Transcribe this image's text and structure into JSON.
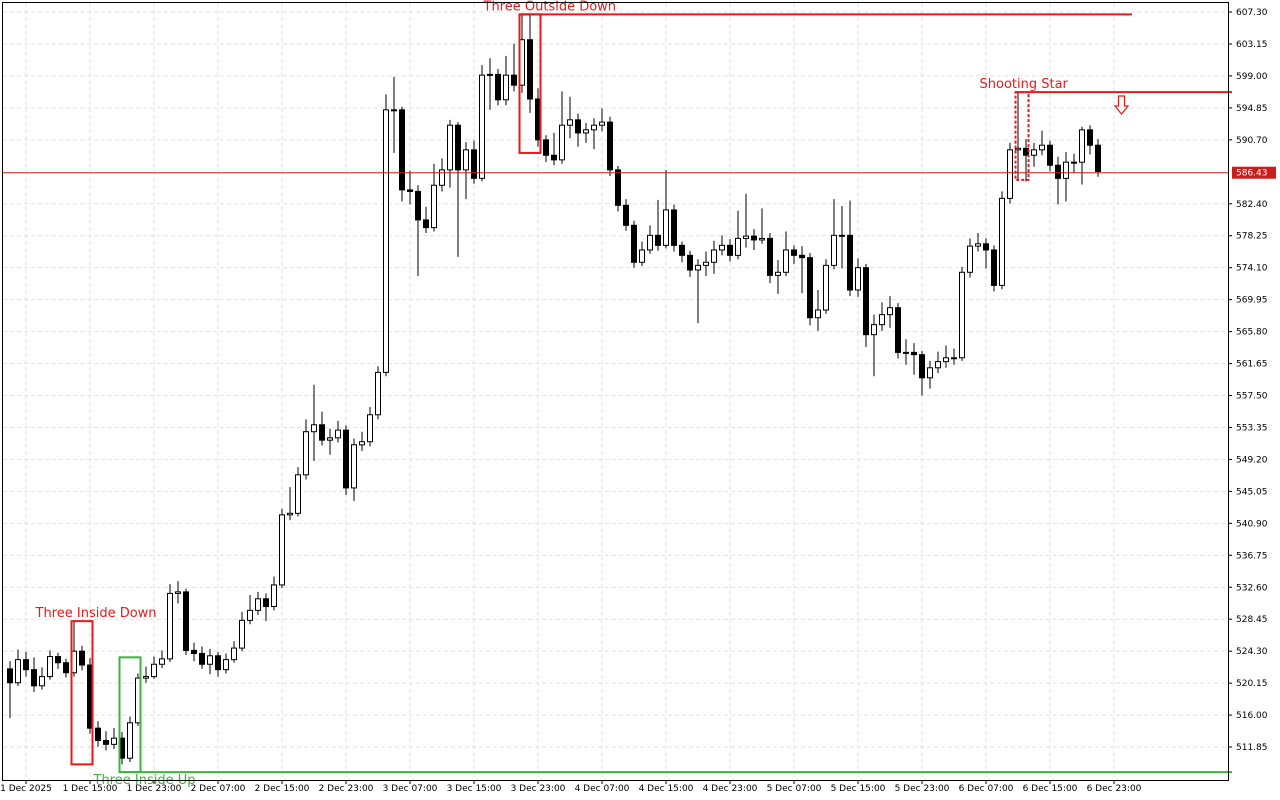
{
  "chart_data": {
    "type": "candlestick",
    "categories": [
      null,
      null,
      "1 Dec 2025",
      null,
      null,
      null,
      null,
      null,
      null,
      null,
      "1 Dec 15:00",
      null,
      null,
      null,
      null,
      null,
      null,
      null,
      "1 Dec 23:00",
      null,
      null,
      null,
      null,
      null,
      null,
      null,
      "2 Dec 07:00",
      null,
      null,
      null,
      null,
      null,
      null,
      null,
      "2 Dec 15:00",
      null,
      null,
      null,
      null,
      null,
      null,
      null,
      "2 Dec 23:00",
      null,
      null,
      null,
      null,
      null,
      null,
      null,
      "3 Dec 07:00",
      null,
      null,
      null,
      null,
      null,
      null,
      null,
      "3 Dec 15:00",
      null,
      null,
      null,
      null,
      null,
      null,
      null,
      "3 Dec 23:00",
      null,
      null,
      null,
      null,
      null,
      null,
      null,
      "4 Dec 07:00",
      null,
      null,
      null,
      null,
      null,
      null,
      null,
      "4 Dec 15:00",
      null,
      null,
      null,
      null,
      null,
      null,
      null,
      "4 Dec 23:00",
      null,
      null,
      null,
      null,
      null,
      null,
      null,
      "5 Dec 07:00",
      null,
      null,
      null,
      null,
      null,
      null,
      null,
      "5 Dec 15:00",
      null,
      null,
      null,
      null,
      null,
      null,
      null,
      "5 Dec 23:00",
      null,
      null,
      null,
      null,
      null,
      null,
      null,
      "6 Dec 07:00",
      null,
      null,
      null,
      null,
      null,
      null,
      null,
      "6 Dec 15:00",
      null,
      null,
      null,
      null,
      null,
      null,
      null,
      "6 Dec 23:00"
    ],
    "open": [
      522.0,
      520.2,
      523.2,
      521.9,
      519.8,
      521.0,
      523.6,
      522.8,
      521.5,
      524.3,
      522.5,
      514.3,
      512.7,
      512.2,
      513.0,
      510.4,
      515.0,
      520.8,
      521.0,
      522.6,
      523.3,
      531.8,
      532.0,
      524.4,
      524.0,
      522.6,
      523.7,
      521.9,
      523.2,
      524.7,
      528.3,
      529.6,
      531.1,
      530.1,
      532.9,
      542.0,
      542.2,
      547.2,
      552.8,
      553.7,
      551.7,
      552.0,
      553.0,
      545.5,
      551.1,
      551.5,
      555.0,
      560.5,
      594.6,
      594.6,
      584.2,
      584.0,
      580.3,
      579.3,
      584.8,
      586.8,
      592.6,
      586.8,
      589.4,
      585.7,
      599.1,
      599.2,
      595.9,
      599.1,
      597.8,
      603.7,
      596.0,
      590.7,
      588.7,
      588.1,
      592.6,
      593.3,
      591.6,
      592.0,
      592.6,
      593.0,
      586.8,
      582.2,
      579.6,
      574.8,
      576.4,
      578.3,
      577.0,
      581.6,
      577.0,
      575.7,
      573.8,
      574.4,
      574.8,
      576.4,
      577.0,
      575.7,
      577.9,
      578.2,
      577.7,
      577.9,
      573.1,
      573.5,
      576.4,
      575.7,
      575.4,
      567.6,
      568.6,
      574.4,
      578.3,
      578.3,
      571.2,
      574.1,
      565.4,
      566.7,
      568.0,
      568.9,
      563.1,
      563.1,
      562.8,
      559.8,
      561.1,
      561.9,
      562.4,
      562.4,
      573.5,
      576.9,
      577.2,
      576.4,
      571.8,
      583.1,
      589.4,
      589.6,
      588.7,
      589.4,
      590.0,
      587.4,
      585.7,
      587.8,
      587.8,
      592.0,
      590.0,
      null,
      null
    ],
    "high": [
      523.0,
      524.5,
      524.2,
      523.5,
      522.2,
      524.4,
      524.1,
      523.3,
      528.2,
      525.0,
      523.4,
      515.2,
      513.9,
      514.3,
      513.8,
      515.8,
      521.4,
      522.3,
      523.6,
      524.4,
      533.0,
      533.4,
      532.4,
      525.4,
      524.9,
      524.6,
      524.2,
      524.0,
      525.6,
      529.4,
      531.6,
      532.0,
      531.8,
      534.0,
      542.8,
      545.6,
      548.2,
      554.4,
      558.9,
      555.4,
      553.2,
      554.2,
      553.6,
      551.9,
      552.8,
      556.0,
      561.3,
      596.6,
      598.9,
      595.0,
      586.7,
      584.8,
      582.0,
      587.6,
      588.3,
      593.3,
      593.0,
      590.4,
      590.6,
      600.4,
      601.3,
      599.9,
      601.6,
      603.2,
      607.0,
      607.0,
      597.4,
      591.3,
      591.6,
      597.0,
      596.3,
      594.1,
      592.9,
      593.5,
      594.8,
      593.7,
      587.3,
      583.0,
      580.2,
      577.5,
      579.6,
      582.9,
      586.8,
      582.3,
      577.5,
      576.3,
      575.2,
      576.2,
      577.6,
      578.3,
      577.8,
      581.5,
      583.7,
      579.1,
      581.8,
      578.6,
      575.1,
      578.8,
      577.0,
      576.9,
      576.0,
      571.2,
      575.2,
      583.0,
      582.1,
      582.8,
      575.3,
      574.6,
      568.0,
      569.6,
      570.4,
      569.5,
      564.8,
      564.3,
      563.3,
      562.0,
      563.2,
      564.0,
      563.6,
      574.2,
      577.9,
      578.6,
      577.9,
      577.0,
      584.0,
      590.3,
      596.9,
      590.8,
      590.3,
      591.9,
      590.6,
      588.5,
      589.1,
      588.9,
      592.4,
      592.6,
      590.8,
      null,
      null
    ],
    "low": [
      515.6,
      519.8,
      521.0,
      519.0,
      519.3,
      520.6,
      522.0,
      520.9,
      521.0,
      521.8,
      513.6,
      511.9,
      511.4,
      511.6,
      509.6,
      509.9,
      514.6,
      520.2,
      520.7,
      522.1,
      522.9,
      530.5,
      523.8,
      523.0,
      522.0,
      521.3,
      521.0,
      521.4,
      522.8,
      524.3,
      527.8,
      529.0,
      528.2,
      529.6,
      532.5,
      541.3,
      541.8,
      546.6,
      549.0,
      551.0,
      549.8,
      551.4,
      544.6,
      543.8,
      550.3,
      550.9,
      554.4,
      560.0,
      589.0,
      582.7,
      582.3,
      573.0,
      578.6,
      578.8,
      584.0,
      584.5,
      575.5,
      583.0,
      585.0,
      585.3,
      594.6,
      595.2,
      595.2,
      597.0,
      596.8,
      594.2,
      589.8,
      587.8,
      587.4,
      587.6,
      590.9,
      589.8,
      590.3,
      589.5,
      591.8,
      586.0,
      581.4,
      578.9,
      574.1,
      574.3,
      575.9,
      576.3,
      576.6,
      576.2,
      574.8,
      572.9,
      566.9,
      573.0,
      573.3,
      575.7,
      574.9,
      575.2,
      576.7,
      576.4,
      577.2,
      572.1,
      570.7,
      573.0,
      574.6,
      570.8,
      566.6,
      565.9,
      568.1,
      573.9,
      574.0,
      570.4,
      570.3,
      563.8,
      560.0,
      565.9,
      566.3,
      562.3,
      561.5,
      560.2,
      557.5,
      558.4,
      560.4,
      561.1,
      561.5,
      562.0,
      572.8,
      576.2,
      574.0,
      571.0,
      571.3,
      582.4,
      585.6,
      585.3,
      587.2,
      588.7,
      586.6,
      582.3,
      582.7,
      586.4,
      584.9,
      588.8,
      585.9,
      null,
      null
    ],
    "close": [
      520.2,
      523.2,
      521.9,
      519.8,
      521.0,
      523.6,
      522.8,
      521.5,
      524.3,
      522.5,
      514.3,
      512.7,
      512.2,
      513.0,
      510.4,
      515.0,
      520.8,
      521.0,
      522.6,
      523.3,
      531.8,
      532.0,
      524.4,
      524.0,
      522.6,
      523.7,
      521.9,
      523.2,
      524.7,
      528.3,
      529.6,
      531.1,
      530.1,
      532.9,
      542.0,
      542.2,
      547.2,
      552.8,
      553.7,
      551.7,
      552.0,
      553.0,
      545.5,
      551.1,
      551.5,
      555.0,
      560.5,
      594.6,
      594.6,
      584.2,
      584.0,
      580.3,
      579.3,
      584.8,
      586.8,
      592.6,
      586.8,
      589.4,
      585.7,
      599.1,
      599.2,
      595.9,
      599.1,
      597.8,
      603.7,
      596.0,
      590.7,
      588.7,
      588.1,
      592.6,
      593.3,
      591.6,
      592.0,
      592.6,
      593.0,
      586.8,
      582.2,
      579.6,
      574.8,
      576.4,
      578.3,
      577.0,
      581.6,
      577.0,
      575.7,
      573.8,
      574.4,
      574.8,
      576.4,
      577.0,
      575.7,
      577.9,
      578.2,
      577.7,
      577.9,
      573.1,
      573.5,
      576.4,
      575.7,
      575.4,
      567.6,
      568.6,
      574.4,
      578.3,
      578.3,
      571.2,
      574.1,
      565.4,
      566.7,
      568.0,
      568.9,
      563.1,
      563.1,
      562.8,
      559.8,
      561.1,
      561.9,
      562.4,
      562.4,
      573.5,
      576.9,
      577.2,
      576.4,
      571.8,
      583.1,
      589.4,
      589.6,
      588.7,
      589.4,
      590.0,
      587.4,
      585.7,
      587.8,
      587.8,
      592.0,
      590.0,
      586.6,
      null,
      null
    ],
    "up_color": "#ffffff",
    "down_color": "#000000",
    "ylim": [
      507.57,
      608.47
    ],
    "yticks": [
      {
        "value": 607.3,
        "label": "607.30"
      },
      {
        "value": 603.15,
        "label": "603.15"
      },
      {
        "value": 599.0,
        "label": "599.00"
      },
      {
        "value": 594.85,
        "label": "594.85"
      },
      {
        "value": 590.7,
        "label": "590.70"
      },
      {
        "value": 582.4,
        "label": "582.40"
      },
      {
        "value": 578.25,
        "label": "578.25"
      },
      {
        "value": 574.1,
        "label": "574.10"
      },
      {
        "value": 569.95,
        "label": "569.95"
      },
      {
        "value": 565.8,
        "label": "565.80"
      },
      {
        "value": 561.65,
        "label": "561.65"
      },
      {
        "value": 557.5,
        "label": "557.50"
      },
      {
        "value": 553.35,
        "label": "553.35"
      },
      {
        "value": 549.2,
        "label": "549.20"
      },
      {
        "value": 545.05,
        "label": "545.05"
      },
      {
        "value": 540.9,
        "label": "540.90"
      },
      {
        "value": 536.75,
        "label": "536.75"
      },
      {
        "value": 532.6,
        "label": "532.60"
      },
      {
        "value": 528.45,
        "label": "528.45"
      },
      {
        "value": 524.3,
        "label": "524.30"
      },
      {
        "value": 520.15,
        "label": "520.15"
      },
      {
        "value": 516.0,
        "label": "516.00"
      },
      {
        "value": 511.85,
        "label": "511.85"
      }
    ],
    "grid": true,
    "current_price": {
      "value": 586.43,
      "label": "586.43"
    },
    "price_color": "#c81e1e",
    "patterns": [
      {
        "label": "Three Inside Down",
        "color": "#e8191b",
        "start": 8,
        "end": 10,
        "high": 528.2,
        "low": 509.6
      },
      {
        "label": "Three Inside Up",
        "color": "#3cb43c",
        "start": 14,
        "end": 16,
        "high": 523.5,
        "low": 508.6,
        "level": 508.6
      },
      {
        "label": "Three Outside Down",
        "color": "#e8191b",
        "start": 64,
        "end": 66,
        "high": 607.0,
        "low": 589.0,
        "level": 607.0
      },
      {
        "label": "Shooting Star",
        "color": "#e8191b",
        "start": 126,
        "end": 127,
        "high": 596.9,
        "low": 585.5,
        "level": 596.9
      }
    ]
  }
}
